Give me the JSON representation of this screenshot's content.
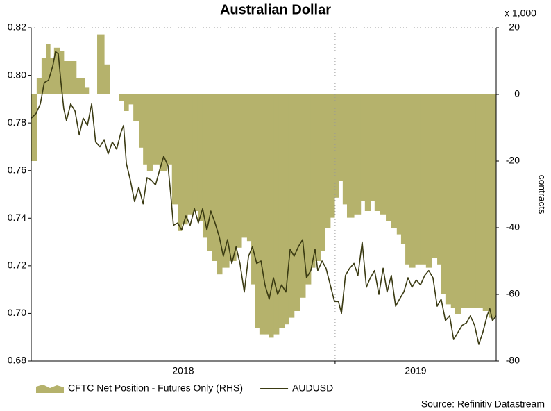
{
  "chart_data": {
    "type": "area-line",
    "title": "Australian Dollar",
    "y2label": "contracts",
    "y2_unit_label": "x 1,000",
    "source": "Source: Refinitiv Datastream",
    "xlim": [
      2018,
      2019.53
    ],
    "xticks": [
      {
        "value": 2018.5,
        "label": "2018"
      },
      {
        "value": 2019.265,
        "label": "2019"
      }
    ],
    "x_gridlines": [
      2019
    ],
    "ylim": [
      0.68,
      0.82
    ],
    "yticks": [
      {
        "value": 0.68,
        "label": "0.68"
      },
      {
        "value": 0.7,
        "label": "0.70"
      },
      {
        "value": 0.72,
        "label": "0.72"
      },
      {
        "value": 0.74,
        "label": "0.74"
      },
      {
        "value": 0.76,
        "label": "0.76"
      },
      {
        "value": 0.78,
        "label": "0.78"
      },
      {
        "value": 0.8,
        "label": "0.80"
      },
      {
        "value": 0.82,
        "label": "0.82"
      }
    ],
    "y2lim": [
      -80,
      20
    ],
    "y2ticks": [
      -80,
      -60,
      -40,
      -20,
      0,
      20
    ],
    "series": [
      {
        "name": "CFTC Net Position - Futures Only (RHS)",
        "kind": "step-area",
        "axis": "y2",
        "color": "#b5b26c",
        "x": [
          2018.0,
          2018.018,
          2018.034,
          2018.048,
          2018.062,
          2018.075,
          2018.094,
          2018.107,
          2018.126,
          2018.148,
          2018.176,
          2018.189,
          2018.208,
          2018.217,
          2018.24,
          2018.258,
          2018.29,
          2018.304,
          2018.32,
          2018.336,
          2018.354,
          2018.368,
          2018.381,
          2018.4,
          2018.422,
          2018.445,
          2018.463,
          2018.482,
          2018.495,
          2018.514,
          2018.532,
          2018.548,
          2018.564,
          2018.578,
          2018.594,
          2018.61,
          2018.628,
          2018.651,
          2018.674,
          2018.692,
          2018.71,
          2018.724,
          2018.737,
          2018.751,
          2018.769,
          2018.783,
          2018.797,
          2018.815,
          2018.833,
          2018.847,
          2018.865,
          2018.884,
          2018.902,
          2018.92,
          2018.934,
          2018.952,
          2018.966,
          2018.984,
          2018.998,
          2019.011,
          2019.025,
          2019.039,
          2019.062,
          2019.084,
          2019.098,
          2019.116,
          2019.13,
          2019.148,
          2019.167,
          2019.185,
          2019.203,
          2019.217,
          2019.231,
          2019.244,
          2019.263,
          2019.281,
          2019.299,
          2019.317,
          2019.336,
          2019.349,
          2019.363,
          2019.381,
          2019.395,
          2019.413,
          2019.436,
          2019.463,
          2019.486,
          2019.505
        ],
        "values": [
          -20,
          5,
          11,
          15,
          11,
          14,
          13,
          10,
          10,
          5,
          2,
          0,
          0,
          18,
          9,
          0,
          -2,
          -5,
          -3,
          -8,
          -16,
          -21,
          -23,
          -21,
          -23,
          -21,
          -33,
          -41,
          -39,
          -36,
          -35,
          -38,
          -43,
          -47,
          -50,
          -54,
          -52,
          -50,
          -46,
          -43,
          -44,
          -57,
          -70,
          -72,
          -72,
          -73,
          -72,
          -70,
          -69,
          -67,
          -65,
          -61,
          -57,
          -52,
          -50,
          -47,
          -40,
          -37,
          -31,
          -26,
          -33,
          -37,
          -36,
          -32,
          -35,
          -32,
          -35,
          -36,
          -38,
          -40,
          -42,
          -45,
          -51,
          -52,
          -51,
          -51,
          -52,
          -49,
          -51,
          -60,
          -63,
          -64,
          -66,
          -64,
          -64,
          -64,
          -65,
          -67
        ]
      },
      {
        "name": "AUDUSD",
        "kind": "line",
        "axis": "y",
        "color": "#3a3a12",
        "x": [
          2018.0,
          2018.016,
          2018.03,
          2018.043,
          2018.057,
          2018.071,
          2018.08,
          2018.089,
          2018.098,
          2018.107,
          2018.116,
          2018.13,
          2018.144,
          2018.158,
          2018.171,
          2018.185,
          2018.199,
          2018.212,
          2018.226,
          2018.24,
          2018.253,
          2018.267,
          2018.281,
          2018.295,
          2018.304,
          2018.313,
          2018.326,
          2018.34,
          2018.354,
          2018.368,
          2018.381,
          2018.395,
          2018.409,
          2018.422,
          2018.436,
          2018.45,
          2018.459,
          2018.468,
          2018.482,
          2018.495,
          2018.509,
          2018.523,
          2018.537,
          2018.55,
          2018.564,
          2018.578,
          2018.591,
          2018.605,
          2018.619,
          2018.632,
          2018.646,
          2018.66,
          2018.674,
          2018.687,
          2018.701,
          2018.715,
          2018.728,
          2018.742,
          2018.756,
          2018.769,
          2018.783,
          2018.797,
          2018.811,
          2018.824,
          2018.838,
          2018.852,
          2018.865,
          2018.879,
          2018.893,
          2018.906,
          2018.92,
          2018.934,
          2018.943,
          2018.957,
          2018.97,
          2018.984,
          2018.998,
          2019.011,
          2019.021,
          2019.034,
          2019.048,
          2019.062,
          2019.075,
          2019.089,
          2019.103,
          2019.116,
          2019.13,
          2019.144,
          2019.158,
          2019.171,
          2019.185,
          2019.199,
          2019.212,
          2019.226,
          2019.24,
          2019.253,
          2019.267,
          2019.281,
          2019.295,
          2019.308,
          2019.322,
          2019.336,
          2019.349,
          2019.363,
          2019.377,
          2019.39,
          2019.404,
          2019.418,
          2019.432,
          2019.445,
          2019.459,
          2019.473,
          2019.486,
          2019.5,
          2019.509,
          2019.518,
          2019.53
        ],
        "values": [
          0.782,
          0.784,
          0.788,
          0.797,
          0.798,
          0.804,
          0.81,
          0.809,
          0.797,
          0.786,
          0.781,
          0.788,
          0.785,
          0.775,
          0.782,
          0.779,
          0.788,
          0.772,
          0.77,
          0.773,
          0.767,
          0.772,
          0.769,
          0.776,
          0.779,
          0.763,
          0.756,
          0.747,
          0.753,
          0.746,
          0.757,
          0.756,
          0.754,
          0.76,
          0.766,
          0.762,
          0.75,
          0.737,
          0.738,
          0.735,
          0.741,
          0.737,
          0.744,
          0.738,
          0.744,
          0.735,
          0.743,
          0.738,
          0.732,
          0.724,
          0.731,
          0.721,
          0.728,
          0.721,
          0.709,
          0.724,
          0.728,
          0.721,
          0.722,
          0.712,
          0.706,
          0.715,
          0.708,
          0.712,
          0.709,
          0.727,
          0.724,
          0.728,
          0.731,
          0.715,
          0.718,
          0.727,
          0.718,
          0.722,
          0.719,
          0.712,
          0.705,
          0.705,
          0.7,
          0.716,
          0.719,
          0.721,
          0.716,
          0.73,
          0.711,
          0.715,
          0.718,
          0.708,
          0.719,
          0.709,
          0.716,
          0.703,
          0.706,
          0.709,
          0.715,
          0.711,
          0.714,
          0.712,
          0.716,
          0.718,
          0.715,
          0.703,
          0.706,
          0.697,
          0.699,
          0.689,
          0.692,
          0.695,
          0.696,
          0.699,
          0.695,
          0.687,
          0.692,
          0.699,
          0.702,
          0.697,
          0.699
        ]
      }
    ]
  }
}
